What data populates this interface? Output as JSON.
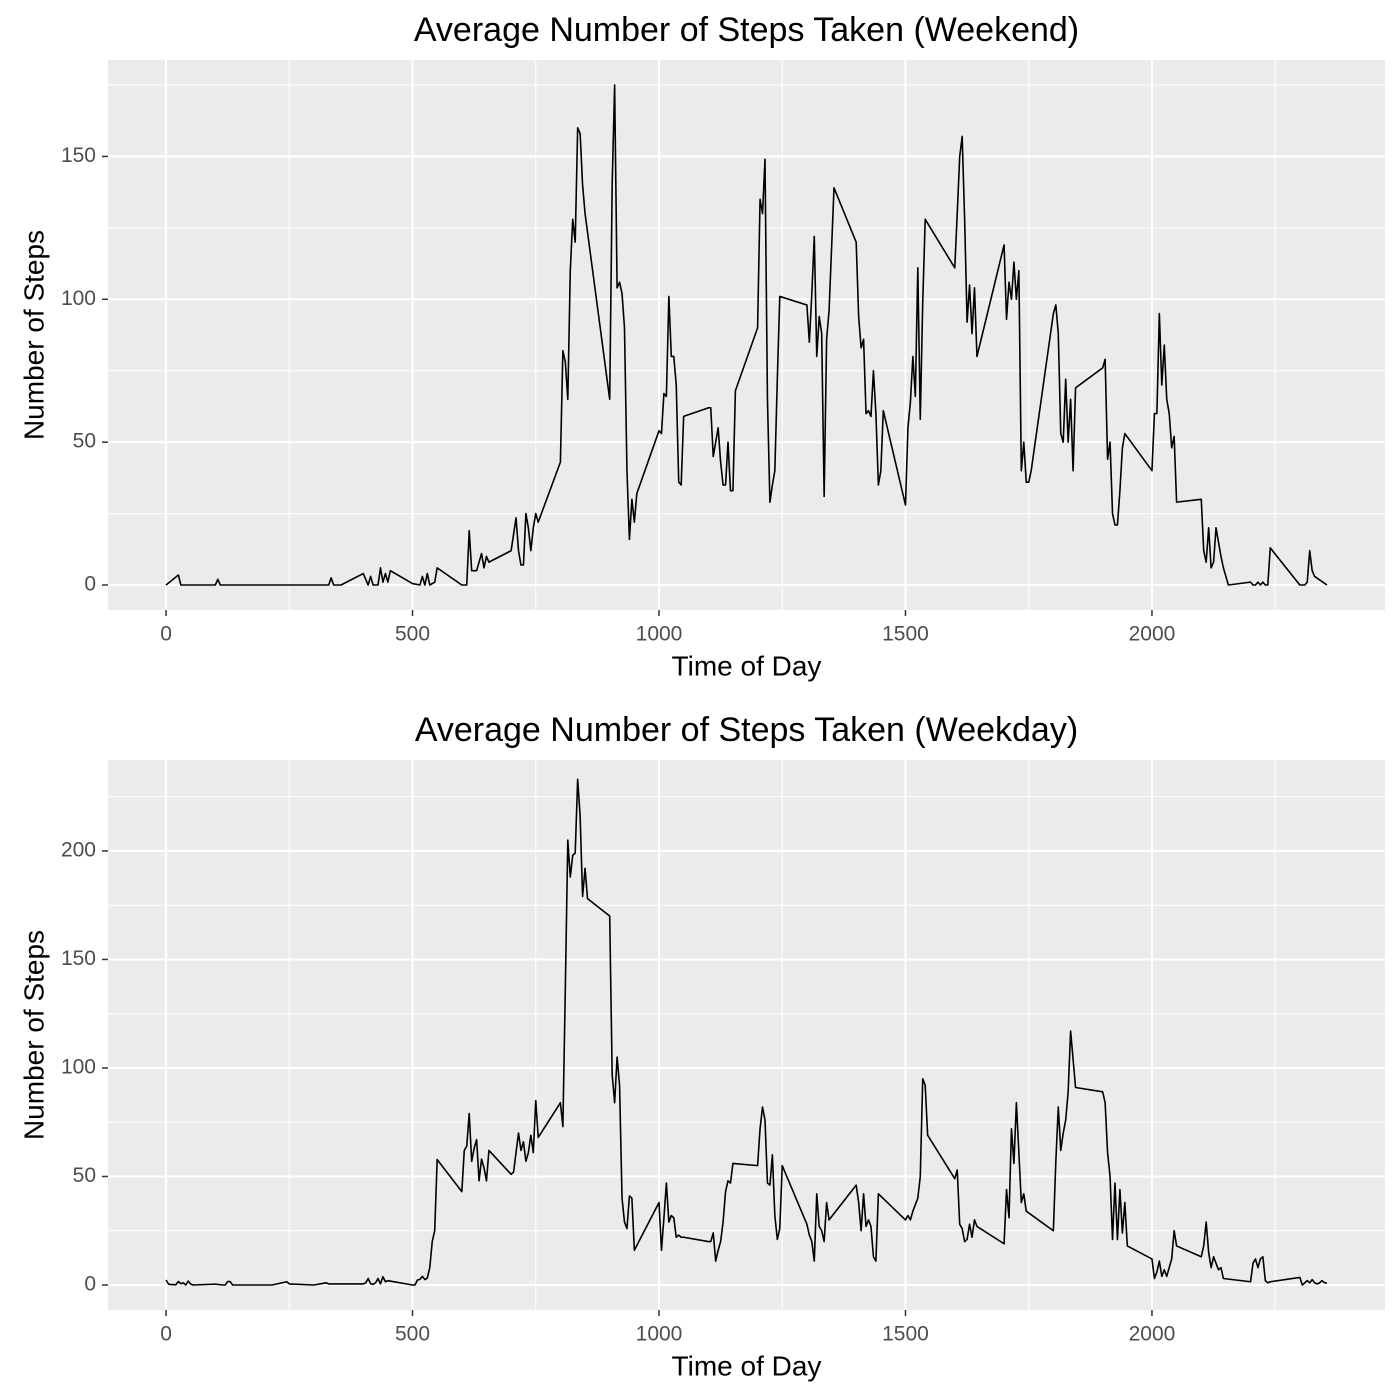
{
  "chart_data": [
    {
      "type": "line",
      "title": "Average Number of Steps Taken (Weekend)",
      "x_label": "Time of Day",
      "y_label": "Number of Steps",
      "x": [
        0,
        25,
        30,
        100,
        105,
        110,
        300,
        330,
        335,
        340,
        355,
        400,
        410,
        415,
        420,
        430,
        435,
        440,
        445,
        450,
        455,
        500,
        515,
        520,
        525,
        530,
        535,
        545,
        550,
        600,
        610,
        615,
        620,
        625,
        630,
        640,
        645,
        650,
        655,
        700,
        710,
        715,
        720,
        725,
        730,
        735,
        740,
        745,
        750,
        755,
        800,
        805,
        810,
        815,
        820,
        825,
        830,
        835,
        840,
        845,
        850,
        900,
        905,
        910,
        915,
        920,
        925,
        930,
        935,
        940,
        945,
        950,
        955,
        1000,
        1005,
        1010,
        1015,
        1020,
        1025,
        1030,
        1035,
        1040,
        1045,
        1050,
        1100,
        1105,
        1110,
        1115,
        1120,
        1125,
        1130,
        1135,
        1140,
        1145,
        1150,
        1155,
        1200,
        1205,
        1210,
        1215,
        1220,
        1225,
        1230,
        1235,
        1240,
        1245,
        1300,
        1305,
        1310,
        1315,
        1320,
        1325,
        1330,
        1335,
        1340,
        1345,
        1355,
        1400,
        1405,
        1410,
        1415,
        1420,
        1425,
        1430,
        1435,
        1440,
        1445,
        1450,
        1455,
        1500,
        1505,
        1510,
        1515,
        1520,
        1525,
        1530,
        1535,
        1540,
        1600,
        1605,
        1610,
        1615,
        1620,
        1625,
        1630,
        1635,
        1640,
        1645,
        1700,
        1705,
        1710,
        1715,
        1720,
        1725,
        1730,
        1735,
        1740,
        1745,
        1750,
        1755,
        1800,
        1805,
        1810,
        1815,
        1820,
        1825,
        1830,
        1835,
        1840,
        1845,
        1900,
        1905,
        1910,
        1915,
        1920,
        1925,
        1930,
        1935,
        1940,
        1945,
        2000,
        2005,
        2010,
        2015,
        2020,
        2025,
        2030,
        2035,
        2040,
        2045,
        2050,
        2100,
        2105,
        2110,
        2115,
        2120,
        2125,
        2130,
        2135,
        2140,
        2145,
        2150,
        2155,
        2200,
        2205,
        2210,
        2215,
        2220,
        2225,
        2230,
        2235,
        2240,
        2300,
        2305,
        2310,
        2315,
        2320,
        2325,
        2330,
        2355
      ],
      "series": [
        {
          "color": "#000000",
          "values": [
            0,
            3.5,
            0,
            0,
            2,
            0,
            0,
            0,
            2.5,
            0,
            0,
            4,
            0,
            3,
            0,
            0,
            6,
            1,
            4,
            1,
            5,
            0.5,
            0,
            3,
            0,
            4,
            0,
            1,
            6,
            0,
            0,
            19,
            5,
            5,
            5,
            11,
            6,
            10,
            8,
            12,
            23.5,
            12,
            7,
            7,
            25,
            20,
            12,
            20,
            25,
            22,
            43,
            82,
            78,
            65,
            110,
            128,
            120,
            160,
            158,
            140,
            130,
            65,
            140,
            175,
            104,
            106,
            102,
            90,
            40,
            16,
            30,
            22,
            32,
            54,
            53,
            67,
            66,
            101,
            80,
            80,
            70,
            36,
            35,
            59,
            62,
            62,
            45,
            50,
            55,
            43,
            35,
            35,
            50,
            33,
            33,
            68,
            90,
            135,
            130,
            149,
            65,
            29,
            35,
            40,
            72,
            101,
            98,
            85,
            102,
            122,
            80,
            94,
            88,
            31,
            86,
            96,
            139,
            120,
            94,
            83,
            86,
            60,
            61,
            59,
            75,
            60,
            35,
            40,
            61,
            28,
            55,
            64,
            80,
            66,
            111,
            58,
            99,
            128,
            111,
            130,
            150,
            157,
            128,
            92,
            105,
            88,
            104,
            80,
            119,
            93,
            106,
            100,
            113,
            100,
            110,
            40,
            50,
            36,
            36,
            40,
            95,
            98,
            88,
            53,
            50,
            72,
            50,
            65,
            40,
            69,
            76,
            79,
            44,
            50,
            25,
            21,
            21,
            33,
            48,
            53,
            40,
            60,
            60,
            95,
            70,
            84,
            65,
            60,
            48,
            52,
            29,
            30,
            12,
            8,
            20,
            6,
            8,
            20,
            15,
            10,
            6,
            3,
            0,
            1,
            0,
            0,
            1,
            0,
            1,
            0,
            0,
            13,
            0,
            0,
            0,
            1,
            12,
            5,
            3,
            0
          ]
        }
      ],
      "xlim": [
        -117.75,
        2472.75
      ],
      "xticks": [
        0,
        500,
        1000,
        1500,
        2000
      ],
      "x_minor_ticks": [
        250,
        750,
        1250,
        1750,
        2250
      ],
      "ylim": [
        -8.75,
        183.75
      ],
      "yticks": [
        0,
        50,
        100,
        150
      ],
      "y_minor_ticks": [
        25,
        75,
        125,
        175
      ],
      "grid": true
    },
    {
      "type": "line",
      "title": "Average Number of Steps Taken (Weekday)",
      "x_label": "Time of Day",
      "y_label": "Number of Steps",
      "x": [
        0,
        5,
        10,
        15,
        20,
        25,
        30,
        35,
        40,
        45,
        50,
        55,
        100,
        115,
        120,
        125,
        130,
        135,
        200,
        215,
        245,
        250,
        300,
        325,
        330,
        400,
        405,
        410,
        415,
        420,
        425,
        430,
        435,
        440,
        445,
        450,
        500,
        505,
        510,
        515,
        520,
        525,
        530,
        535,
        540,
        545,
        550,
        600,
        605,
        610,
        615,
        620,
        625,
        630,
        635,
        640,
        645,
        650,
        655,
        700,
        705,
        710,
        715,
        720,
        725,
        730,
        735,
        740,
        745,
        750,
        755,
        800,
        805,
        810,
        815,
        820,
        825,
        830,
        835,
        840,
        845,
        850,
        855,
        900,
        905,
        910,
        915,
        920,
        925,
        930,
        935,
        940,
        945,
        950,
        1000,
        1005,
        1010,
        1015,
        1020,
        1025,
        1030,
        1035,
        1040,
        1045,
        1050,
        1100,
        1105,
        1110,
        1115,
        1120,
        1125,
        1130,
        1135,
        1140,
        1145,
        1150,
        1200,
        1205,
        1210,
        1215,
        1220,
        1225,
        1230,
        1235,
        1240,
        1245,
        1250,
        1300,
        1305,
        1310,
        1315,
        1320,
        1325,
        1330,
        1335,
        1340,
        1345,
        1400,
        1405,
        1410,
        1415,
        1420,
        1425,
        1430,
        1435,
        1440,
        1445,
        1500,
        1505,
        1510,
        1515,
        1520,
        1525,
        1530,
        1535,
        1540,
        1545,
        1600,
        1605,
        1610,
        1615,
        1620,
        1625,
        1630,
        1635,
        1640,
        1645,
        1700,
        1705,
        1710,
        1715,
        1720,
        1725,
        1730,
        1735,
        1740,
        1745,
        1800,
        1805,
        1810,
        1815,
        1820,
        1825,
        1830,
        1835,
        1840,
        1845,
        1900,
        1905,
        1910,
        1915,
        1920,
        1925,
        1930,
        1935,
        1940,
        1945,
        1950,
        2000,
        2005,
        2010,
        2015,
        2020,
        2025,
        2030,
        2035,
        2040,
        2045,
        2050,
        2100,
        2105,
        2110,
        2115,
        2120,
        2125,
        2130,
        2135,
        2140,
        2145,
        2200,
        2205,
        2210,
        2215,
        2220,
        2225,
        2230,
        2235,
        2240,
        2300,
        2305,
        2310,
        2315,
        2320,
        2325,
        2330,
        2335,
        2340,
        2345,
        2350,
        2355
      ],
      "series": [
        {
          "color": "#000000",
          "values": [
            2.3,
            0.4,
            0.2,
            0.2,
            0.1,
            1.6,
            0.6,
            1,
            0,
            1.8,
            0.4,
            0,
            0.4,
            0,
            0,
            1.6,
            1.6,
            0,
            0,
            0,
            1.5,
            0.5,
            0,
            1,
            0.5,
            0.5,
            1,
            3,
            0.6,
            0.3,
            1,
            3,
            0.5,
            3.8,
            1.5,
            2,
            0,
            0,
            2.3,
            2.6,
            4,
            2.5,
            3.2,
            8,
            20,
            25,
            57.8,
            43,
            62,
            64,
            79,
            57,
            63,
            67,
            48,
            58,
            54,
            48,
            62,
            51,
            52,
            61,
            70,
            62,
            66,
            57,
            61,
            69,
            61,
            85,
            68,
            84,
            73,
            137,
            205,
            188,
            198,
            199,
            233,
            216,
            179,
            192,
            178,
            170,
            97,
            84,
            105,
            92,
            40,
            29,
            26,
            41,
            40,
            16,
            38,
            16,
            31,
            47,
            29,
            32,
            31,
            22,
            23,
            22,
            22,
            20,
            20,
            24,
            11,
            16,
            20,
            29,
            43,
            48,
            47,
            56,
            55,
            72,
            82,
            76,
            47,
            46,
            60,
            32,
            21,
            26,
            55,
            28,
            23,
            20,
            11,
            42,
            27,
            25,
            20,
            38,
            30,
            46,
            38,
            25,
            42,
            27,
            30,
            27,
            13,
            11,
            42,
            30,
            32,
            30,
            34,
            37,
            40,
            50,
            95,
            92,
            69,
            49,
            53,
            28,
            26,
            20,
            21,
            28,
            22,
            30,
            27,
            19,
            44,
            31,
            72,
            56,
            84,
            61,
            38,
            42,
            34,
            25,
            57,
            82,
            62,
            70,
            76,
            89,
            117,
            104,
            91,
            89,
            84,
            61,
            50,
            21,
            47,
            21,
            44,
            24,
            38,
            18,
            12,
            3,
            6,
            11,
            4,
            7,
            4,
            8,
            12,
            25,
            18,
            13,
            18,
            29,
            15,
            8,
            13,
            10,
            7,
            8,
            3,
            1.5,
            10,
            12,
            8,
            12,
            13,
            2,
            1,
            1.5,
            3.5,
            0,
            1,
            2,
            1,
            2.5,
            1,
            0.5,
            1,
            2,
            1,
            1
          ]
        }
      ],
      "xlim": [
        -117.75,
        2472.75
      ],
      "xticks": [
        0,
        500,
        1000,
        1500,
        2000
      ],
      "x_minor_ticks": [
        250,
        750,
        1250,
        1750,
        2250
      ],
      "ylim": [
        -11.52,
        241.9
      ],
      "yticks": [
        0,
        50,
        100,
        150,
        200
      ],
      "y_minor_ticks": [
        25,
        75,
        125,
        175,
        225
      ],
      "grid": true
    }
  ]
}
